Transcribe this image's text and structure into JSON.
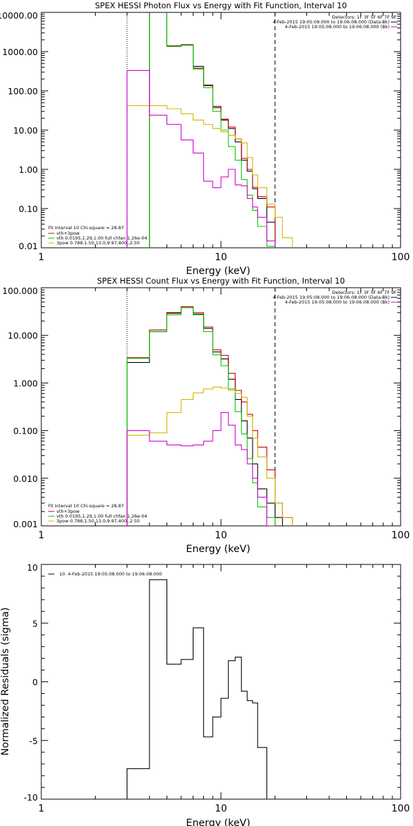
{
  "chart_data": [
    {
      "type": "line",
      "title": "SPEX HESSI Photon Flux vs Energy with Fit Function, Interval 10",
      "xlabel": "Energy (keV)",
      "ylabel": "",
      "xscale": "log",
      "yscale": "log",
      "xlim": [
        1,
        100
      ],
      "ylim": [
        0.01,
        10000
      ],
      "xticks": [
        "1",
        "10",
        "100"
      ],
      "yticks": [
        "0.01",
        "0.10",
        "1.00",
        "10.00",
        "100.00",
        "1000.00",
        "10000.00"
      ],
      "legend_header": [
        "Detectors: 1F 3F 5F 6F 7F 9F",
        "4-Feb-2015 19:05:08.000 to 19:06:08.000 (Data-Bk)",
        "4-Feb-2015 19:05:08.000 to 19:06:08.000 (Bk)"
      ],
      "fit_legend": {
        "header": "Fit Interval 10   Chi-square = 28.87",
        "entries": [
          {
            "label": "vth+3pow",
            "color": "#c00000"
          },
          {
            "label": "vth 0.0195,1.29,1.00  full chfan 1.26e-04",
            "color": "#00c800"
          },
          {
            "label": "3pow 0.788,1.50,13.0,9.97,400.,2.50",
            "color": "#d2b400"
          }
        ]
      },
      "energy_edges": [
        3.0,
        4.0,
        5.0,
        6.0,
        7.0,
        8.0,
        9.0,
        10.0,
        11.0,
        12.0,
        13.0,
        14.0,
        15.0,
        16.0,
        18.0,
        20.0,
        22.0,
        25.0
      ],
      "dashed_line_x": 20,
      "dotted_line_x": 3,
      "series": [
        {
          "name": "Data-Bk",
          "color": "#000000",
          "values": [
            null,
            12000,
            1400,
            1500,
            420,
            140,
            40,
            18,
            11,
            5.0,
            1.7,
            0.9,
            0.32,
            0.18,
            0.045,
            null,
            null
          ]
        },
        {
          "name": "vth+3pow",
          "color": "#c00000",
          "values": [
            null,
            13000,
            1380,
            1480,
            380,
            135,
            37,
            19,
            12,
            6.0,
            1.9,
            1.0,
            0.35,
            0.2,
            0.11,
            null,
            null
          ]
        },
        {
          "name": "vth",
          "color": "#00c800",
          "values": [
            null,
            13000,
            1350,
            1450,
            360,
            120,
            30,
            10,
            3.8,
            1.7,
            0.55,
            0.22,
            0.09,
            0.035,
            0.011,
            null,
            null
          ]
        },
        {
          "name": "3pow",
          "color": "#d2b400",
          "values": [
            42,
            42,
            35,
            26,
            18,
            14,
            11,
            9.0,
            7.4,
            6.0,
            4.7,
            2.0,
            0.72,
            0.34,
            0.13,
            0.06,
            0.018
          ]
        },
        {
          "name": "Bk",
          "color": "#d000d0",
          "values": [
            330,
            24,
            14,
            5.6,
            2.6,
            0.5,
            0.34,
            0.64,
            1.0,
            0.4,
            0.38,
            0.18,
            0.11,
            0.06,
            0.015,
            null,
            null
          ]
        }
      ]
    },
    {
      "type": "line",
      "title": "SPEX HESSI Count Flux vs Energy with Fit Function, Interval 10",
      "xlabel": "Energy (keV)",
      "ylabel": "",
      "xscale": "log",
      "yscale": "log",
      "xlim": [
        1,
        100
      ],
      "ylim": [
        0.001,
        100
      ],
      "xticks": [
        "1",
        "10",
        "100"
      ],
      "yticks": [
        "0.001",
        "0.010",
        "0.100",
        "1.000",
        "10.000",
        "100.000"
      ],
      "legend_header": [
        "Detectors: 1F 3F 5F 6F 7F 9F",
        "4-Feb-2015 19:05:08.000 to 19:06:08.000 (Data-Bk)",
        "4-Feb-2015 19:05:08.000 to 19:06:08.000 (Bk)"
      ],
      "fit_legend": {
        "header": "Fit Interval 10   Chi-square = 28.87",
        "entries": [
          {
            "label": "vth+3pow",
            "color": "#c00000"
          },
          {
            "label": "vth 0.0195,1.29,1.00  full chfan 1.26e-04",
            "color": "#00c800"
          },
          {
            "label": "3pow 0.788,1.50,13.0,9.97,400.,2.50",
            "color": "#d2b400"
          }
        ]
      },
      "energy_edges": [
        3.0,
        4.0,
        5.0,
        6.0,
        7.0,
        8.0,
        9.0,
        10.0,
        11.0,
        12.0,
        13.0,
        14.0,
        15.0,
        16.0,
        18.0,
        20.0,
        22.0,
        25.0
      ],
      "dashed_line_x": 20,
      "dotted_line_x": 3,
      "series": [
        {
          "name": "Data-Bk",
          "color": "#000000",
          "values": [
            2.7,
            12,
            30,
            40,
            28,
            14,
            4.5,
            3.2,
            1.2,
            0.45,
            0.16,
            0.07,
            0.02,
            0.006,
            0.003,
            0.0015,
            null
          ]
        },
        {
          "name": "vth+3pow",
          "color": "#c00000",
          "values": [
            3.4,
            13,
            29,
            40,
            30,
            15,
            5.0,
            3.8,
            1.6,
            0.7,
            0.4,
            0.22,
            0.1,
            0.045,
            0.015,
            0.003,
            0.0015
          ]
        },
        {
          "name": "vth",
          "color": "#00c800",
          "values": [
            3.3,
            12,
            27,
            38,
            27,
            12,
            3.9,
            2.3,
            0.75,
            0.25,
            0.085,
            0.026,
            0.008,
            0.0025,
            0.0015,
            null,
            null
          ]
        },
        {
          "name": "3pow",
          "color": "#d2b400",
          "values": [
            0.08,
            0.09,
            0.24,
            0.45,
            0.62,
            0.75,
            0.82,
            0.78,
            0.7,
            0.6,
            0.5,
            0.2,
            0.07,
            0.028,
            0.01,
            0.003,
            0.0015
          ]
        },
        {
          "name": "Bk",
          "color": "#d000d0",
          "values": [
            0.1,
            0.06,
            0.05,
            0.048,
            0.05,
            0.06,
            0.1,
            0.24,
            0.13,
            0.05,
            0.04,
            0.02,
            0.01,
            0.004,
            0.001,
            null,
            null
          ]
        }
      ]
    },
    {
      "type": "line",
      "title": "",
      "xlabel": "Energy (keV)",
      "ylabel": "Normalized Residuals (sigma)",
      "xscale": "log",
      "yscale": "linear",
      "xlim": [
        1,
        100
      ],
      "ylim": [
        -10,
        10
      ],
      "xticks": [
        "1",
        "10",
        "100"
      ],
      "yticks": [
        "10",
        "5",
        "0",
        "-5",
        "-10"
      ],
      "legend": "10.  4-Feb-2015 19:05:08.000 to 19:06:08.000",
      "energy_edges": [
        3.0,
        4.0,
        5.0,
        6.0,
        7.0,
        8.0,
        9.0,
        10.0,
        11.0,
        12.0,
        13.0,
        14.0,
        15.0,
        16.0,
        18.0,
        20.0
      ],
      "series": [
        {
          "name": "Residuals",
          "color": "#000000",
          "values": [
            -7.4,
            8.7,
            1.5,
            1.9,
            4.6,
            -4.7,
            -3.0,
            -1.4,
            1.8,
            2.1,
            -0.8,
            -1.6,
            -1.8,
            -5.6,
            -10.5
          ]
        }
      ]
    }
  ]
}
